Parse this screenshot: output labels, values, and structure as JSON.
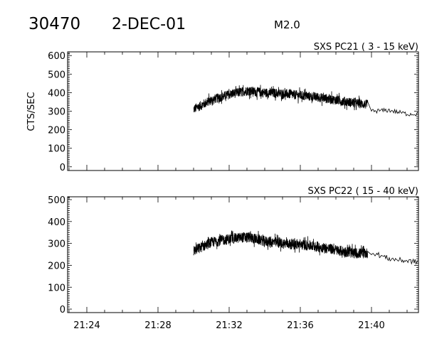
{
  "header": {
    "id": "30470",
    "date": "2-DEC-01",
    "class": "M2.0"
  },
  "chart_data": [
    {
      "type": "line",
      "title": "SXS PC21  (  3 - 15 keV)",
      "ylabel": "CTS/SEC",
      "xlabel": "",
      "xlim_minutes": [
        1282.92,
        1302.64
      ],
      "ylim": [
        -20,
        620
      ],
      "yticks": [
        "0",
        "100",
        "200",
        "300",
        "400",
        "500",
        "600"
      ],
      "xticks": [],
      "trend_time": [
        "21:30",
        "21:31",
        "21:32",
        "21:33",
        "21:34",
        "21:35",
        "21:36",
        "21:37",
        "21:38",
        "21:39",
        "21:39.8",
        "21:40",
        "21:41",
        "21:42",
        "21:42.6"
      ],
      "trend_values": [
        310,
        360,
        390,
        410,
        400,
        395,
        385,
        375,
        360,
        345,
        335,
        300,
        305,
        285,
        285
      ],
      "noise_dense": 32,
      "noise_sparse": 12,
      "dense_until": "21:39.8"
    },
    {
      "type": "line",
      "title": "SXS PC22  ( 15 - 40 keV)",
      "ylabel": "",
      "xlabel": "",
      "xlim_minutes": [
        1282.92,
        1302.64
      ],
      "ylim": [
        -16,
        513
      ],
      "yticks": [
        "0",
        "100",
        "200",
        "300",
        "400",
        "500"
      ],
      "xticks": [
        "21:24",
        "21:28",
        "21:32",
        "21:36",
        "21:40"
      ],
      "trend_time": [
        "21:30",
        "21:31",
        "21:32",
        "21:33",
        "21:34",
        "21:35",
        "21:36",
        "21:37",
        "21:38",
        "21:39",
        "21:39.8",
        "21:40",
        "21:41",
        "21:42",
        "21:42.6"
      ],
      "trend_values": [
        265,
        305,
        320,
        330,
        310,
        300,
        295,
        285,
        270,
        255,
        255,
        260,
        230,
        220,
        215
      ],
      "noise_dense": 30,
      "noise_sparse": 12,
      "dense_until": "21:39.8"
    }
  ]
}
